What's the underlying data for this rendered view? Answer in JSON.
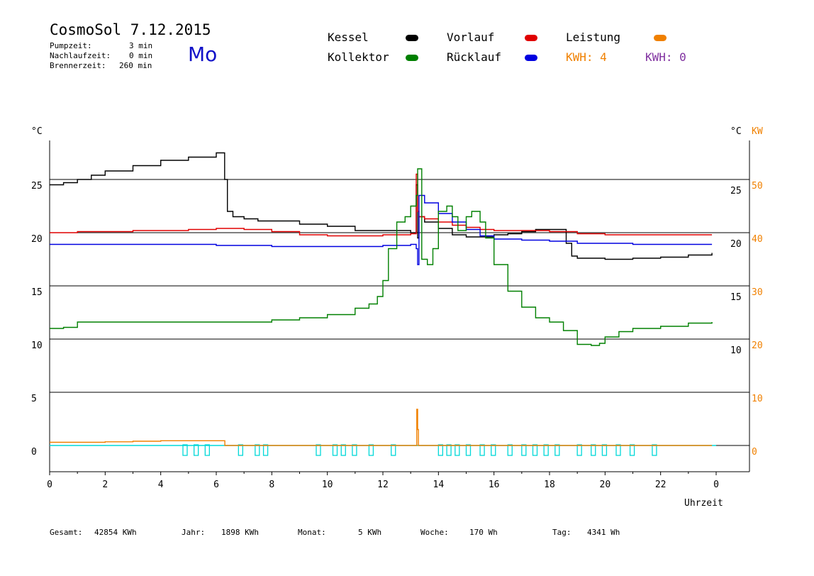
{
  "header": {
    "title": "CosmoSol 7.12.2015",
    "day": "Mo",
    "stats": [
      {
        "label": "Pumpzeit:",
        "value": "3 min"
      },
      {
        "label": "Nachlaufzeit:",
        "value": "0 min"
      },
      {
        "label": "Brennerzeit:",
        "value": "260 min"
      }
    ]
  },
  "legend": {
    "kessel": "Kessel",
    "vorlauf": "Vorlauf",
    "leistung": "Leistung",
    "kollektor": "Kollektor",
    "ruecklauf": "Rücklauf",
    "kwh1": "KWH: 4",
    "kwh2": "KWH: 0"
  },
  "colors": {
    "kessel": "#000000",
    "vorlauf": "#e00000",
    "leistung": "#f08000",
    "kollektor": "#008000",
    "ruecklauf": "#0000e0",
    "kwh2": "#8030a0",
    "pump": "#00d8d8"
  },
  "footer": {
    "gesamt_label": "Gesamt:",
    "gesamt_value": "42854 KWh",
    "jahr_label": "Jahr:",
    "jahr_value": "1898 KWh",
    "monat_label": "Monat:",
    "monat_value": "5 KWh",
    "woche_label": "Woche:",
    "woche_value": "170 Wh",
    "tag_label": "Tag:",
    "tag_value": "4341 Wh"
  },
  "chart_data": {
    "type": "line",
    "xlabel": "Uhrzeit",
    "x_ticks": [
      "0",
      "2",
      "4",
      "6",
      "8",
      "10",
      "12",
      "14",
      "16",
      "18",
      "20",
      "22",
      "0"
    ],
    "left_axis": {
      "unit": "°C",
      "ticks": [
        0,
        5,
        10,
        15,
        20,
        25
      ],
      "ylim": [
        -2,
        29
      ]
    },
    "right_axis": {
      "unit": "°C",
      "unit2": "KW",
      "ticks": [
        10,
        15,
        20,
        25
      ],
      "kw_ticks": [
        0,
        10,
        20,
        30,
        40,
        50
      ]
    },
    "grid_hlines": [
      5,
      10,
      15,
      20,
      25
    ],
    "series": [
      {
        "name": "Kessel",
        "key": "kessel",
        "x": [
          0,
          0.5,
          1,
          1.5,
          2,
          3,
          4,
          5,
          6,
          6.2,
          6.3,
          6.4,
          6.6,
          7,
          7.5,
          8,
          9,
          10,
          11,
          12,
          13,
          13.2,
          13.25,
          13.3,
          13.5,
          14,
          14.5,
          15,
          15.5,
          16,
          16.5,
          17,
          17.5,
          18,
          18.5,
          18.6,
          18.8,
          19,
          20,
          21,
          22,
          23,
          23.85
        ],
        "values": [
          24.5,
          24.7,
          25,
          25.4,
          25.8,
          26.3,
          26.8,
          27.1,
          27.5,
          27.5,
          25,
          22,
          21.5,
          21.3,
          21.1,
          21.1,
          20.8,
          20.6,
          20.2,
          20.2,
          20,
          24.5,
          19.5,
          21.5,
          21,
          20.4,
          19.8,
          19.6,
          19.6,
          19.8,
          19.9,
          20.1,
          20.3,
          20.3,
          20.3,
          19,
          17.8,
          17.6,
          17.5,
          17.6,
          17.7,
          17.9,
          18.1
        ]
      },
      {
        "name": "Vorlauf",
        "key": "vorlauf",
        "x": [
          0,
          1,
          2,
          3,
          4,
          5,
          6,
          7,
          8,
          9,
          10,
          11,
          12,
          13,
          13.2,
          13.25,
          13.3,
          13.5,
          14,
          14.5,
          15,
          15.5,
          16,
          17,
          18,
          19,
          20,
          21,
          22,
          23,
          23.85
        ],
        "values": [
          20,
          20.1,
          20.1,
          20.2,
          20.2,
          20.3,
          20.4,
          20.3,
          20.1,
          19.8,
          19.7,
          19.7,
          19.8,
          19.9,
          25.5,
          22,
          21.5,
          21.3,
          21,
          20.7,
          20.5,
          20.3,
          20.2,
          20.2,
          20.1,
          19.9,
          19.8,
          19.8,
          19.8,
          19.8,
          19.8
        ]
      },
      {
        "name": "Rücklauf",
        "key": "ruecklauf",
        "x": [
          0,
          2,
          4,
          6,
          8,
          10,
          12,
          13,
          13.2,
          13.25,
          13.3,
          13.5,
          14,
          14.5,
          15,
          15.5,
          16,
          17,
          18,
          19,
          20,
          21,
          22,
          23,
          23.85
        ],
        "values": [
          18.9,
          18.9,
          18.9,
          18.8,
          18.7,
          18.7,
          18.8,
          18.9,
          18.5,
          17,
          23.5,
          22.8,
          21.8,
          21,
          20.3,
          19.7,
          19.4,
          19.3,
          19.2,
          19,
          19,
          18.9,
          18.9,
          18.9,
          18.9
        ]
      },
      {
        "name": "Kollektor",
        "key": "kollektor",
        "x": [
          0,
          0.5,
          1,
          2,
          3,
          4,
          5,
          6,
          7,
          8,
          9,
          10,
          11,
          11.5,
          11.8,
          12,
          12.2,
          12.5,
          12.8,
          13,
          13.2,
          13.25,
          13.4,
          13.6,
          13.8,
          14,
          14.3,
          14.5,
          14.7,
          15,
          15.2,
          15.5,
          15.7,
          16,
          16.5,
          17,
          17.5,
          18,
          18.5,
          19,
          19.5,
          19.8,
          20,
          20.5,
          21,
          22,
          23,
          23.85
        ],
        "values": [
          11,
          11.1,
          11.6,
          11.6,
          11.6,
          11.6,
          11.6,
          11.6,
          11.6,
          11.8,
          12,
          12.3,
          12.9,
          13.3,
          14,
          15.5,
          18.5,
          21,
          21.5,
          22.5,
          23.5,
          26,
          17.5,
          17,
          18.5,
          22,
          22.5,
          21.5,
          20.2,
          21.5,
          22,
          21,
          19.5,
          17,
          14.5,
          13,
          12,
          11.6,
          10.8,
          9.5,
          9.4,
          9.6,
          10.2,
          10.7,
          11,
          11.2,
          11.5,
          11.6
        ]
      },
      {
        "name": "Leistung",
        "key": "leistung",
        "x": [
          0,
          1,
          2,
          3,
          4,
          5,
          6,
          6.3,
          6.31,
          13.2,
          13.22,
          13.25,
          13.28,
          13.3,
          23.85
        ],
        "values": [
          0.3,
          0.3,
          0.35,
          0.4,
          0.45,
          0.45,
          0.45,
          0.45,
          0,
          0,
          3.4,
          1.5,
          0,
          0,
          0
        ]
      }
    ],
    "pump_cycles": [
      4.8,
      5.2,
      5.6,
      6.8,
      7.4,
      7.7,
      9.6,
      10.2,
      10.5,
      10.9,
      11.5,
      12.3,
      14,
      14.3,
      14.6,
      15,
      15.5,
      15.9,
      16.5,
      17,
      17.4,
      17.8,
      18.2,
      19,
      19.5,
      19.9,
      20.4,
      20.9,
      21.7
    ]
  }
}
